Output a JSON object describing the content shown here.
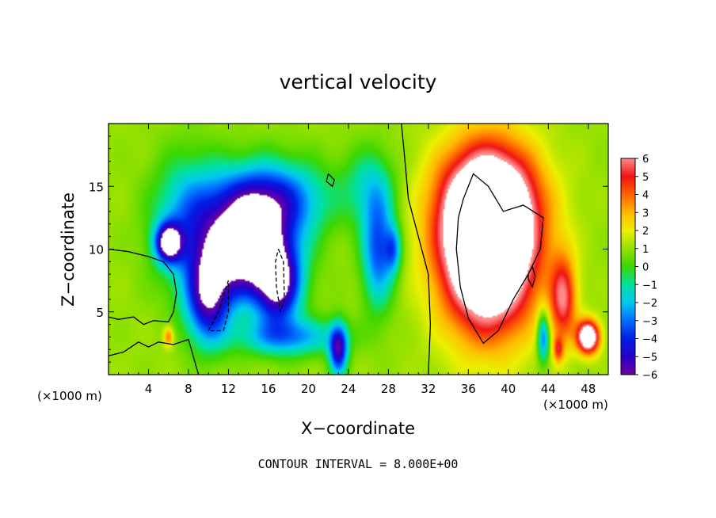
{
  "chart_data": {
    "type": "heatmap",
    "title": "vertical velocity",
    "xlabel": "X−coordinate",
    "ylabel": "Z−coordinate",
    "x_unit": "(×1000 m)",
    "y_unit": "(×1000 m)",
    "xlim": [
      0,
      50
    ],
    "ylim": [
      0,
      20
    ],
    "x_ticks": [
      4,
      8,
      12,
      16,
      20,
      24,
      28,
      32,
      36,
      40,
      44,
      48
    ],
    "y_ticks": [
      5,
      10,
      15
    ],
    "x_tick_labels": [
      "4",
      "8",
      "12",
      "16",
      "20",
      "24",
      "28",
      "32",
      "36",
      "40",
      "44",
      "48"
    ],
    "y_tick_labels": [
      "5",
      "10",
      "15"
    ],
    "colorbar": {
      "min": -6,
      "max": 6,
      "ticks": [
        6,
        5,
        4,
        3,
        2,
        1,
        0,
        -1,
        -2,
        -3,
        -4,
        -5,
        -6
      ],
      "tick_labels": [
        "6",
        "5",
        "4",
        "3",
        "2",
        "1",
        "0",
        "−1",
        "−2",
        "−3",
        "−4",
        "−5",
        "−6"
      ],
      "saturation_color": "#ffffff"
    },
    "features": [
      {
        "x": 14,
        "z": 10,
        "sx": 4.2,
        "sz": 3.8,
        "amp": -9
      },
      {
        "x": 10,
        "z": 6,
        "sx": 2.2,
        "sz": 3.5,
        "amp": -6
      },
      {
        "x": 17,
        "z": 7,
        "sx": 2.2,
        "sz": 3.0,
        "amp": -6
      },
      {
        "x": 16,
        "z": 14,
        "sx": 5.5,
        "sz": 3.0,
        "amp": -5
      },
      {
        "x": 8,
        "z": 12,
        "sx": 3.5,
        "sz": 5.0,
        "amp": -3.5
      },
      {
        "x": 6,
        "z": 10.5,
        "sx": 1.3,
        "sz": 1.5,
        "amp": -7
      },
      {
        "x": 18,
        "z": 3,
        "sx": 5.0,
        "sz": 1.5,
        "amp": -3.5
      },
      {
        "x": 23,
        "z": 2,
        "sx": 0.9,
        "sz": 2.0,
        "amp": -6
      },
      {
        "x": 27,
        "z": 10,
        "sx": 1.6,
        "sz": 4.5,
        "amp": -4.5
      },
      {
        "x": 28.5,
        "z": 10,
        "sx": 0.8,
        "sz": 1.8,
        "amp": -3
      },
      {
        "x": 26,
        "z": 15,
        "sx": 2.5,
        "sz": 3.0,
        "amp": -2
      },
      {
        "x": 38,
        "z": 10.5,
        "sx": 4.6,
        "sz": 6.5,
        "amp": 12
      },
      {
        "x": 38,
        "z": 14,
        "sx": 5.0,
        "sz": 4.0,
        "amp": 3
      },
      {
        "x": 45.5,
        "z": 6,
        "sx": 1.3,
        "sz": 3.5,
        "amp": 4.5
      },
      {
        "x": 43.5,
        "z": 3,
        "sx": 0.6,
        "sz": 2.0,
        "amp": -4.5
      },
      {
        "x": 45,
        "z": 2,
        "sx": 0.5,
        "sz": 1.0,
        "amp": 3
      },
      {
        "x": 48,
        "z": 3,
        "sx": 1.1,
        "sz": 1.3,
        "amp": 8
      },
      {
        "x": 6,
        "z": 3,
        "sx": 0.5,
        "sz": 0.8,
        "amp": 3
      }
    ],
    "contours": [
      {
        "level": 0,
        "style": "solid",
        "points": [
          [
            0,
            10
          ],
          [
            2,
            9.8
          ],
          [
            4,
            9.4
          ],
          [
            5.5,
            9
          ],
          [
            6.5,
            8
          ],
          [
            6.8,
            6.5
          ],
          [
            6.5,
            5
          ],
          [
            6,
            4.2
          ],
          [
            4.5,
            4.3
          ],
          [
            3.5,
            4
          ],
          [
            2.5,
            4.6
          ],
          [
            1,
            4.4
          ],
          [
            0,
            4.6
          ]
        ]
      },
      {
        "level": 0,
        "style": "solid",
        "points": [
          [
            32,
            0
          ],
          [
            32.2,
            4
          ],
          [
            32,
            8
          ],
          [
            31,
            11
          ],
          [
            30,
            14
          ],
          [
            29.6,
            17.5
          ],
          [
            29.3,
            20
          ]
        ]
      },
      {
        "level": 8,
        "style": "solid",
        "points": [
          [
            35.5,
            14
          ],
          [
            36.5,
            16
          ],
          [
            38,
            15
          ],
          [
            39.5,
            13
          ],
          [
            41.5,
            13.5
          ],
          [
            43.5,
            12.5
          ],
          [
            43.2,
            10
          ],
          [
            42,
            8
          ],
          [
            40.5,
            6
          ],
          [
            39,
            3.5
          ],
          [
            37.5,
            2.5
          ],
          [
            36,
            4.5
          ],
          [
            35.2,
            7
          ],
          [
            34.8,
            10
          ],
          [
            35,
            12.5
          ],
          [
            35.5,
            14
          ]
        ]
      },
      {
        "level": 0,
        "style": "solid",
        "points": [
          [
            0,
            1.5
          ],
          [
            1.5,
            1.8
          ],
          [
            3,
            2.6
          ],
          [
            4,
            2.2
          ],
          [
            5,
            2.6
          ],
          [
            6.5,
            2.4
          ],
          [
            8,
            2.8
          ],
          [
            9,
            0
          ]
        ]
      },
      {
        "level": -8,
        "style": "dashed",
        "points": [
          [
            10,
            3.5
          ],
          [
            11,
            5
          ],
          [
            12,
            7.5
          ],
          [
            12,
            5
          ],
          [
            11.5,
            3.5
          ],
          [
            10,
            3.5
          ]
        ]
      },
      {
        "level": -8,
        "style": "dashed",
        "points": [
          [
            17,
            10
          ],
          [
            17.5,
            9
          ],
          [
            17.6,
            6
          ],
          [
            17.2,
            5
          ],
          [
            16.8,
            7
          ],
          [
            16.7,
            9
          ],
          [
            17,
            10
          ]
        ]
      },
      {
        "level": 0,
        "style": "solid",
        "points": [
          [
            22,
            16
          ],
          [
            22.6,
            15.5
          ],
          [
            22.4,
            15
          ],
          [
            21.8,
            15.4
          ],
          [
            22,
            16
          ]
        ]
      },
      {
        "level": 0,
        "style": "solid",
        "points": [
          [
            42,
            8
          ],
          [
            42.4,
            8.6
          ],
          [
            42.7,
            7.8
          ],
          [
            42.4,
            7
          ],
          [
            42,
            7.6
          ],
          [
            42,
            8
          ]
        ]
      }
    ]
  },
  "footer": "CONTOUR INTERVAL =  8.000E+00"
}
